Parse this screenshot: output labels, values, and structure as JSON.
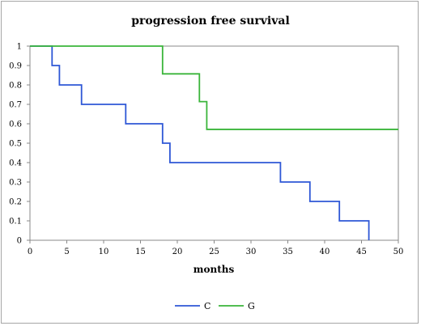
{
  "chart_data": {
    "type": "line",
    "step": true,
    "title": "progression free survival",
    "xlabel": "months",
    "ylabel": "",
    "xlim": [
      0,
      50
    ],
    "ylim": [
      0,
      1
    ],
    "xticks": [
      0,
      5,
      10,
      15,
      20,
      25,
      30,
      35,
      40,
      45,
      50
    ],
    "yticks": [
      0,
      0.1,
      0.2,
      0.3,
      0.4,
      0.5,
      0.6,
      0.7,
      0.8,
      0.9,
      1
    ],
    "grid": false,
    "legend_position": "bottom",
    "series": [
      {
        "name": "C",
        "color": "#2e57d6",
        "points": [
          [
            0,
            1
          ],
          [
            3,
            1
          ],
          [
            3,
            0.9
          ],
          [
            4,
            0.9
          ],
          [
            4,
            0.8
          ],
          [
            7,
            0.8
          ],
          [
            7,
            0.7
          ],
          [
            13,
            0.7
          ],
          [
            13,
            0.6
          ],
          [
            18,
            0.6
          ],
          [
            18,
            0.5
          ],
          [
            19,
            0.5
          ],
          [
            19,
            0.4
          ],
          [
            34,
            0.4
          ],
          [
            34,
            0.3
          ],
          [
            38,
            0.3
          ],
          [
            38,
            0.2
          ],
          [
            42,
            0.2
          ],
          [
            42,
            0.1
          ],
          [
            46,
            0.1
          ],
          [
            46,
            0
          ]
        ]
      },
      {
        "name": "G",
        "color": "#3ab53a",
        "points": [
          [
            0,
            1
          ],
          [
            18,
            1
          ],
          [
            18,
            0.857
          ],
          [
            23,
            0.857
          ],
          [
            23,
            0.714
          ],
          [
            24,
            0.714
          ],
          [
            24,
            0.571
          ],
          [
            50,
            0.571
          ]
        ]
      }
    ]
  }
}
